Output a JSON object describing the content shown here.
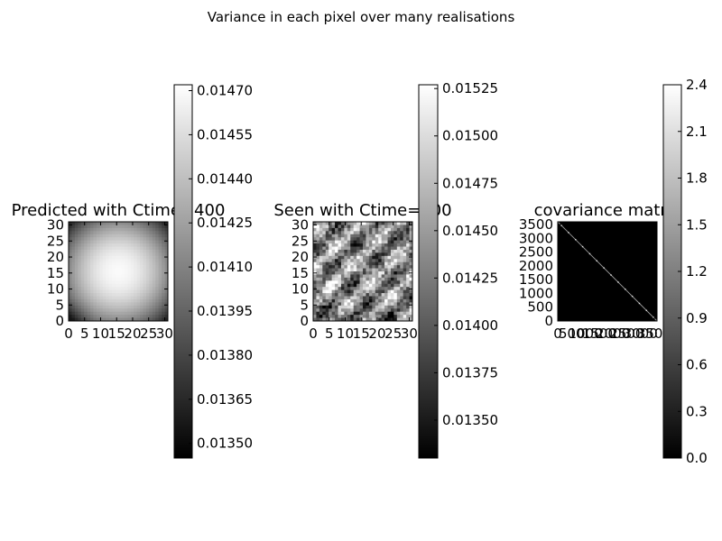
{
  "suptitle": "Variance in each pixel over many realisations",
  "chart_data": [
    {
      "type": "heatmap",
      "title": "Predicted with Ctime=400",
      "colormap": "gray",
      "grid_size": 32,
      "x_ticks": [
        0,
        5,
        10,
        15,
        20,
        25,
        30
      ],
      "y_ticks": [
        0,
        5,
        10,
        15,
        20,
        25,
        30
      ],
      "xlim": [
        0,
        31
      ],
      "ylim": [
        31,
        0
      ],
      "colorbar": {
        "vmin": 0.01345,
        "vmax": 0.01472,
        "ticks": [
          0.0135,
          0.01365,
          0.0138,
          0.01395,
          0.0141,
          0.01425,
          0.0144,
          0.01455,
          0.0147
        ],
        "tick_format": "%.5f"
      }
    },
    {
      "type": "heatmap",
      "title": "Seen with Ctime=400",
      "colormap": "gray",
      "grid_size": 32,
      "x_ticks": [
        0,
        5,
        10,
        15,
        20,
        25,
        30
      ],
      "y_ticks": [
        0,
        5,
        10,
        15,
        20,
        25,
        30
      ],
      "xlim": [
        0,
        31
      ],
      "ylim": [
        31,
        0
      ],
      "colorbar": {
        "vmin": 0.0133,
        "vmax": 0.01527,
        "ticks": [
          0.0135,
          0.01375,
          0.014,
          0.01425,
          0.0145,
          0.01475,
          0.015,
          0.01525
        ],
        "tick_format": "%.5f"
      }
    },
    {
      "type": "heatmap",
      "title": "covariance matrix",
      "colormap": "gray",
      "matrix_size": 3600,
      "structure": "diagonal",
      "x_ticks": [
        0,
        500,
        1000,
        1500,
        2000,
        2500,
        3000,
        3500
      ],
      "y_ticks": [
        0,
        500,
        1000,
        1500,
        2000,
        2500,
        3000,
        3500
      ],
      "xlim": [
        0,
        3600
      ],
      "ylim": [
        3600,
        0
      ],
      "colorbar": {
        "vmin": 0.0,
        "vmax": 2.4,
        "ticks": [
          0.0,
          0.3,
          0.6,
          0.9,
          1.2,
          1.5,
          1.8,
          2.1,
          2.4
        ],
        "tick_format": "%.1f"
      }
    }
  ]
}
